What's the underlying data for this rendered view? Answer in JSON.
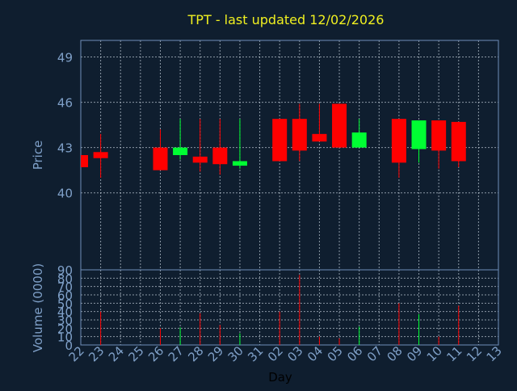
{
  "colors": {
    "background": "#0f1e2f",
    "title": "#f0f020",
    "axis_text": "#7fa0c8",
    "frame": "#6f8fb8",
    "grid": "#c0ccd8",
    "up": "#00ff33",
    "down": "#ff0000"
  },
  "chart_data": {
    "type": "candlestick",
    "title": "TPT - last updated 12/02/2026",
    "grid": true,
    "categories": [
      "22",
      "23",
      "24",
      "25",
      "26",
      "27",
      "28",
      "29",
      "30",
      "31",
      "02",
      "03",
      "04",
      "05",
      "06",
      "07",
      "08",
      "09",
      "10",
      "11",
      "12",
      "13"
    ],
    "xlabel": "Day",
    "price_panel": {
      "ylabel": "Price",
      "ylim": [
        34.9,
        50.1
      ],
      "yticks": [
        40,
        43,
        46,
        49
      ],
      "candles": [
        {
          "i": 0,
          "open": 42.5,
          "close": 41.7,
          "high": 42.5,
          "low": 41.7
        },
        {
          "i": 1,
          "open": 42.7,
          "close": 42.3,
          "high": 43.9,
          "low": 41.0
        },
        {
          "i": 4,
          "open": 43.0,
          "close": 41.5,
          "high": 44.2,
          "low": 41.5
        },
        {
          "i": 5,
          "open": 42.5,
          "close": 43.0,
          "high": 44.9,
          "low": 42.2
        },
        {
          "i": 6,
          "open": 42.4,
          "close": 42.0,
          "high": 44.9,
          "low": 41.4
        },
        {
          "i": 7,
          "open": 43.0,
          "close": 41.9,
          "high": 44.9,
          "low": 41.2
        },
        {
          "i": 8,
          "open": 41.8,
          "close": 42.1,
          "high": 44.9,
          "low": 41.6
        },
        {
          "i": 10,
          "open": 44.9,
          "close": 42.1,
          "high": 44.9,
          "low": 42.1
        },
        {
          "i": 11,
          "open": 44.9,
          "close": 42.8,
          "high": 45.9,
          "low": 42.1
        },
        {
          "i": 12,
          "open": 43.9,
          "close": 43.4,
          "high": 45.9,
          "low": 43.4
        },
        {
          "i": 13,
          "open": 45.9,
          "close": 43.0,
          "high": 45.9,
          "low": 43.0
        },
        {
          "i": 14,
          "open": 43.0,
          "close": 44.0,
          "high": 44.9,
          "low": 43.0
        },
        {
          "i": 16,
          "open": 44.9,
          "close": 42.0,
          "high": 44.9,
          "low": 41.0
        },
        {
          "i": 17,
          "open": 42.9,
          "close": 44.8,
          "high": 44.8,
          "low": 42.0
        },
        {
          "i": 18,
          "open": 44.8,
          "close": 42.8,
          "high": 44.8,
          "low": 41.6
        },
        {
          "i": 19,
          "open": 44.7,
          "close": 42.1,
          "high": 44.7,
          "low": 41.7
        }
      ]
    },
    "volume_panel": {
      "ylabel": "Volume (0000)",
      "ylim": [
        0,
        90
      ],
      "yticks": [
        0,
        10,
        20,
        30,
        40,
        50,
        60,
        70,
        80,
        90
      ],
      "bars": [
        {
          "i": 1,
          "value": 40,
          "dir": "down"
        },
        {
          "i": 4,
          "value": 20,
          "dir": "down"
        },
        {
          "i": 5,
          "value": 21,
          "dir": "up"
        },
        {
          "i": 6,
          "value": 38,
          "dir": "down"
        },
        {
          "i": 7,
          "value": 24,
          "dir": "down"
        },
        {
          "i": 8,
          "value": 14,
          "dir": "up"
        },
        {
          "i": 10,
          "value": 40,
          "dir": "down"
        },
        {
          "i": 11,
          "value": 84,
          "dir": "down"
        },
        {
          "i": 12,
          "value": 10,
          "dir": "down"
        },
        {
          "i": 13,
          "value": 8,
          "dir": "down"
        },
        {
          "i": 14,
          "value": 22,
          "dir": "up"
        },
        {
          "i": 16,
          "value": 50,
          "dir": "down"
        },
        {
          "i": 17,
          "value": 37,
          "dir": "up"
        },
        {
          "i": 18,
          "value": 10,
          "dir": "down"
        },
        {
          "i": 19,
          "value": 47,
          "dir": "down"
        }
      ]
    }
  }
}
